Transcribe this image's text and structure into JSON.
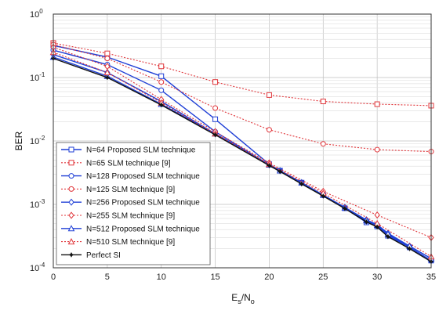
{
  "chart_data": {
    "type": "line",
    "title": "",
    "xlabel": "Es/No",
    "xlabel_main": "E",
    "xlabel_sub1": "s",
    "xlabel_mid": "/N",
    "xlabel_sub2": "o",
    "ylabel": "BER",
    "xlim": [
      0,
      35
    ],
    "ylim": [
      0.0001,
      1
    ],
    "yscale": "log",
    "grid": true,
    "legend_position": "bottom-left",
    "x_ticks": [
      "0",
      "5",
      "10",
      "15",
      "20",
      "25",
      "30",
      "35"
    ],
    "y_ticks": [
      {
        "base": "10",
        "exp": "-4"
      },
      {
        "base": "10",
        "exp": "-3"
      },
      {
        "base": "10",
        "exp": "-2"
      },
      {
        "base": "10",
        "exp": "-1"
      },
      {
        "base": "10",
        "exp": "0"
      }
    ],
    "series": [
      {
        "name": "N=64 Proposed SLM technique",
        "color": "#1f3fd6",
        "dash": "solid",
        "marker": "square",
        "x": [
          0,
          5,
          10,
          15,
          20,
          21,
          23,
          25,
          27,
          29,
          30,
          31,
          33,
          35
        ],
        "y": [
          0.32,
          0.21,
          0.105,
          0.022,
          0.0043,
          0.0034,
          0.0022,
          0.0014,
          0.00087,
          0.00052,
          0.00045,
          0.00032,
          0.00021,
          0.00013
        ]
      },
      {
        "name": "N=65 SLM technique [9]",
        "color": "#e0353a",
        "dash": "dot",
        "marker": "square",
        "x": [
          0,
          5,
          10,
          15,
          20,
          25,
          30,
          35
        ],
        "y": [
          0.35,
          0.24,
          0.15,
          0.085,
          0.053,
          0.042,
          0.038,
          0.036
        ]
      },
      {
        "name": "N=128 Proposed SLM technique",
        "color": "#1f3fd6",
        "dash": "solid",
        "marker": "circle",
        "x": [
          0,
          5,
          10,
          15,
          20,
          21,
          23,
          25,
          27,
          29,
          30,
          31,
          33,
          35
        ],
        "y": [
          0.27,
          0.16,
          0.063,
          0.014,
          0.0042,
          0.0034,
          0.0022,
          0.0014,
          0.00088,
          0.00054,
          0.00046,
          0.00033,
          0.00021,
          0.00013
        ]
      },
      {
        "name": "N=125 SLM technique [9]",
        "color": "#e0353a",
        "dash": "dot",
        "marker": "circle",
        "x": [
          0,
          5,
          10,
          15,
          20,
          25,
          30,
          35
        ],
        "y": [
          0.33,
          0.2,
          0.085,
          0.033,
          0.015,
          0.009,
          0.0073,
          0.0068
        ]
      },
      {
        "name": "N=256 Proposed SLM technique",
        "color": "#1f3fd6",
        "dash": "solid",
        "marker": "diamond",
        "x": [
          0,
          5,
          10,
          15,
          20,
          21,
          23,
          25,
          27,
          29,
          30,
          31,
          33,
          35
        ],
        "y": [
          0.23,
          0.12,
          0.042,
          0.013,
          0.0042,
          0.0034,
          0.0022,
          0.0014,
          0.0009,
          0.00057,
          0.00048,
          0.00035,
          0.00022,
          0.00014
        ]
      },
      {
        "name": "N=255 SLM technique [9]",
        "color": "#e0353a",
        "dash": "dot",
        "marker": "diamond",
        "x": [
          0,
          5,
          10,
          15,
          20,
          25,
          30,
          35
        ],
        "y": [
          0.3,
          0.15,
          0.045,
          0.014,
          0.0045,
          0.0016,
          0.00068,
          0.0003
        ]
      },
      {
        "name": "N=512 Proposed SLM technique",
        "color": "#1f3fd6",
        "dash": "solid",
        "marker": "triangle",
        "x": [
          0,
          5,
          10,
          15,
          20,
          21,
          23,
          25,
          27,
          29,
          30,
          31,
          33,
          35
        ],
        "y": [
          0.21,
          0.105,
          0.038,
          0.013,
          0.0042,
          0.0034,
          0.0022,
          0.0014,
          0.00089,
          0.00056,
          0.00047,
          0.00034,
          0.00022,
          0.00014
        ]
      },
      {
        "name": "N=510 SLM technique [9]",
        "color": "#e0353a",
        "dash": "dot",
        "marker": "triangle",
        "x": [
          0,
          5,
          10,
          15,
          20,
          25,
          30,
          35
        ],
        "y": [
          0.25,
          0.12,
          0.04,
          0.013,
          0.0043,
          0.0015,
          0.0005,
          0.00015
        ]
      },
      {
        "name": "Perfect SI",
        "color": "#111111",
        "dash": "solid",
        "marker": "star",
        "x": [
          0,
          5,
          10,
          15,
          20,
          21,
          23,
          25,
          27,
          29,
          30,
          31,
          33,
          35
        ],
        "y": [
          0.2,
          0.1,
          0.037,
          0.0125,
          0.0041,
          0.0033,
          0.0021,
          0.00135,
          0.00086,
          0.00053,
          0.00044,
          0.00031,
          0.0002,
          0.000125
        ]
      }
    ]
  }
}
